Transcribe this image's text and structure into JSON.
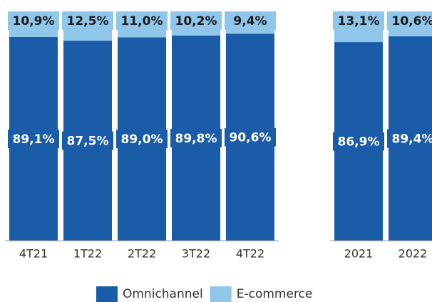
{
  "chart_data": {
    "type": "stacked_bar",
    "categories": [
      "4T21",
      "1T22",
      "2T22",
      "3T22",
      "4T22",
      null,
      "2021",
      "2022"
    ],
    "series": [
      {
        "name": "Omnichannel",
        "color": "#1b5ca8",
        "values": [
          89.1,
          87.5,
          89.0,
          89.8,
          90.6,
          null,
          86.9,
          89.4
        ],
        "value_labels": [
          "89,1%",
          "87,5%",
          "89,0%",
          "89,8%",
          "90,6%",
          null,
          "86,9%",
          "89,4%"
        ]
      },
      {
        "name": "E-commerce",
        "color": "#8fc6ea",
        "values": [
          10.9,
          12.5,
          11.0,
          10.2,
          9.4,
          null,
          13.1,
          10.6
        ],
        "value_labels": [
          "10,9%",
          "12,5%",
          "11,0%",
          "10,2%",
          "9,4%",
          null,
          "13,1%",
          "10,6%"
        ]
      }
    ],
    "ylim": [
      0,
      100
    ]
  }
}
